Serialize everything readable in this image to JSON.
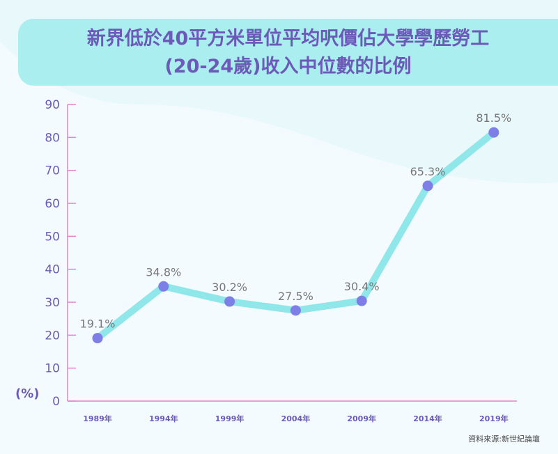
{
  "title_line1": "新界低於40平方米單位平均呎價佔大學學歷勞工",
  "title_line2": "(20-24歲)收入中位數的比例",
  "source": "資料來源:新世紀論壇",
  "colors": {
    "title": "#6b5ab8",
    "title_bg": "#aaeef0",
    "line": "#8fe7ea",
    "marker": "#7d7ee6",
    "axis": "#e184c9",
    "label": "#777777"
  },
  "chart_data": {
    "type": "line",
    "categories": [
      "1989年",
      "1994年",
      "1999年",
      "2004年",
      "2009年",
      "2014年",
      "2019年"
    ],
    "values": [
      19.1,
      34.8,
      30.2,
      27.5,
      30.4,
      65.3,
      81.5
    ],
    "data_labels": [
      "19.1%",
      "34.8%",
      "30.2%",
      "27.5%",
      "30.4%",
      "65.3%",
      "81.5%"
    ],
    "y_ticks": [
      "0",
      "10",
      "20",
      "30",
      "40",
      "50",
      "60",
      "70",
      "80",
      "90"
    ],
    "ylabel": "(%)",
    "ylim": [
      0,
      90
    ],
    "grid": false
  }
}
